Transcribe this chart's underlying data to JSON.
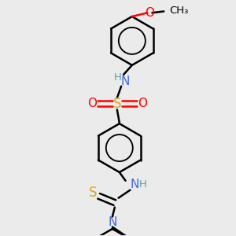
{
  "background_color": "#ebebeb",
  "line_color": "#000000",
  "bond_width": 1.8,
  "atom_colors": {
    "N": "#4169E1",
    "H": "#5F9EA0",
    "S_sulfonyl": "#DAA520",
    "S_thio": "#DAA520",
    "O": "#FF0000",
    "C": "#000000"
  },
  "font_size": 10,
  "fig_width": 3.0,
  "fig_height": 3.0,
  "dpi": 100,
  "xlim": [
    -1.8,
    1.8
  ],
  "ylim": [
    -2.8,
    2.2
  ]
}
